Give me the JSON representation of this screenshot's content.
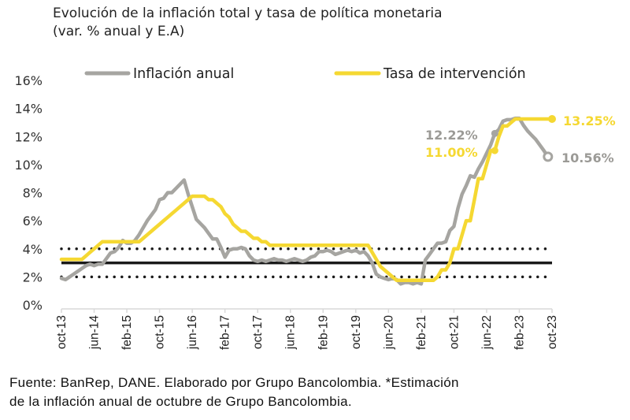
{
  "chart_data": {
    "type": "line",
    "title": "Evolución de la inflación total y tasa de política monetaria",
    "subtitle": "(var. % anual y E.A)",
    "xlabel": "",
    "ylabel": "",
    "ylim": [
      0,
      16
    ],
    "yticks": [
      0,
      2,
      4,
      6,
      8,
      10,
      12,
      14,
      16
    ],
    "ytick_labels": [
      "0%",
      "2%",
      "4%",
      "6%",
      "8%",
      "10%",
      "12%",
      "14%",
      "16%"
    ],
    "x_start": "oct-13",
    "x_end": "oct-23",
    "x_unit": "month",
    "xtick_labels": [
      "oct-13",
      "jun-14",
      "feb-15",
      "oct-15",
      "jun-16",
      "feb-17",
      "oct-17",
      "jun-18",
      "feb-19",
      "oct-19",
      "jun-20",
      "feb-21",
      "oct-21",
      "jun-22",
      "feb-23",
      "oct-23"
    ],
    "xtick_month_index": [
      0,
      8,
      16,
      24,
      32,
      40,
      48,
      56,
      64,
      72,
      80,
      88,
      96,
      104,
      112,
      120
    ],
    "grid": false,
    "legend_position": "top",
    "series": [
      {
        "name": "Inflación anual",
        "color": "#a6a5a1",
        "points": [
          [
            0,
            1.9
          ],
          [
            1,
            1.8
          ],
          [
            2,
            2.0
          ],
          [
            3,
            2.2
          ],
          [
            4,
            2.4
          ],
          [
            5,
            2.6
          ],
          [
            6,
            2.8
          ],
          [
            7,
            2.9
          ],
          [
            8,
            2.8
          ],
          [
            9,
            2.9
          ],
          [
            10,
            2.9
          ],
          [
            11,
            3.3
          ],
          [
            12,
            3.7
          ],
          [
            13,
            3.8
          ],
          [
            14,
            4.1
          ],
          [
            15,
            4.6
          ],
          [
            16,
            4.4
          ],
          [
            17,
            4.4
          ],
          [
            18,
            4.6
          ],
          [
            19,
            5.0
          ],
          [
            20,
            5.5
          ],
          [
            21,
            6.0
          ],
          [
            22,
            6.4
          ],
          [
            23,
            6.8
          ],
          [
            24,
            7.5
          ],
          [
            25,
            7.6
          ],
          [
            26,
            8.0
          ],
          [
            27,
            8.0
          ],
          [
            28,
            8.3
          ],
          [
            29,
            8.6
          ],
          [
            30,
            8.9
          ],
          [
            31,
            7.9
          ],
          [
            32,
            7.0
          ],
          [
            33,
            6.1
          ],
          [
            34,
            5.8
          ],
          [
            35,
            5.5
          ],
          [
            36,
            5.1
          ],
          [
            37,
            4.7
          ],
          [
            38,
            4.7
          ],
          [
            39,
            4.1
          ],
          [
            40,
            3.4
          ],
          [
            41,
            3.9
          ],
          [
            42,
            4.0
          ],
          [
            43,
            4.0
          ],
          [
            44,
            4.1
          ],
          [
            45,
            4.0
          ],
          [
            46,
            3.5
          ],
          [
            47,
            3.2
          ],
          [
            48,
            3.1
          ],
          [
            49,
            3.2
          ],
          [
            50,
            3.1
          ],
          [
            51,
            3.2
          ],
          [
            52,
            3.3
          ],
          [
            53,
            3.2
          ],
          [
            54,
            3.2
          ],
          [
            55,
            3.1
          ],
          [
            56,
            3.2
          ],
          [
            57,
            3.3
          ],
          [
            58,
            3.2
          ],
          [
            59,
            3.1
          ],
          [
            60,
            3.2
          ],
          [
            61,
            3.4
          ],
          [
            62,
            3.5
          ],
          [
            63,
            3.8
          ],
          [
            64,
            3.8
          ],
          [
            65,
            3.9
          ],
          [
            66,
            3.8
          ],
          [
            67,
            3.6
          ],
          [
            68,
            3.7
          ],
          [
            69,
            3.8
          ],
          [
            70,
            3.9
          ],
          [
            71,
            3.8
          ],
          [
            72,
            3.9
          ],
          [
            73,
            3.7
          ],
          [
            74,
            3.8
          ],
          [
            75,
            3.5
          ],
          [
            76,
            3.0
          ],
          [
            77,
            2.2
          ],
          [
            78,
            2.0
          ],
          [
            79,
            1.9
          ],
          [
            80,
            1.8
          ],
          [
            81,
            1.9
          ],
          [
            82,
            1.8
          ],
          [
            83,
            1.5
          ],
          [
            84,
            1.6
          ],
          [
            85,
            1.6
          ],
          [
            86,
            1.5
          ],
          [
            87,
            1.6
          ],
          [
            88,
            1.5
          ],
          [
            89,
            3.2
          ],
          [
            90,
            3.6
          ],
          [
            91,
            4.0
          ],
          [
            92,
            4.4
          ],
          [
            93,
            4.4
          ],
          [
            94,
            4.5
          ],
          [
            95,
            5.3
          ],
          [
            96,
            5.6
          ],
          [
            97,
            6.9
          ],
          [
            98,
            7.9
          ],
          [
            99,
            8.5
          ],
          [
            100,
            9.2
          ],
          [
            101,
            9.1
          ],
          [
            102,
            9.7
          ],
          [
            103,
            10.2
          ],
          [
            104,
            10.8
          ],
          [
            105,
            11.4
          ],
          [
            106,
            12.22
          ],
          [
            107,
            12.5
          ],
          [
            108,
            13.1
          ],
          [
            109,
            13.2
          ],
          [
            110,
            13.2
          ],
          [
            111,
            13.3
          ],
          [
            112,
            13.3
          ],
          [
            113,
            12.8
          ],
          [
            114,
            12.4
          ],
          [
            115,
            12.1
          ],
          [
            116,
            11.8
          ],
          [
            117,
            11.4
          ],
          [
            118,
            11.0
          ],
          [
            119,
            10.56
          ]
        ],
        "annotations": [
          {
            "month": 106,
            "value": 12.22,
            "label": "12.22%"
          },
          {
            "month": 119,
            "value": 10.56,
            "label": "10.56%",
            "note": "estimación (marcador hueco)"
          }
        ]
      },
      {
        "name": "Tasa de intervención",
        "color": "#f5d832",
        "points": [
          [
            0,
            3.25
          ],
          [
            1,
            3.25
          ],
          [
            2,
            3.25
          ],
          [
            3,
            3.25
          ],
          [
            4,
            3.25
          ],
          [
            5,
            3.25
          ],
          [
            6,
            3.5
          ],
          [
            7,
            3.75
          ],
          [
            8,
            4.0
          ],
          [
            9,
            4.25
          ],
          [
            10,
            4.5
          ],
          [
            11,
            4.5
          ],
          [
            12,
            4.5
          ],
          [
            13,
            4.5
          ],
          [
            14,
            4.5
          ],
          [
            15,
            4.5
          ],
          [
            16,
            4.5
          ],
          [
            17,
            4.5
          ],
          [
            18,
            4.5
          ],
          [
            19,
            4.5
          ],
          [
            20,
            4.75
          ],
          [
            21,
            5.0
          ],
          [
            22,
            5.25
          ],
          [
            23,
            5.5
          ],
          [
            24,
            5.75
          ],
          [
            25,
            6.0
          ],
          [
            26,
            6.25
          ],
          [
            27,
            6.5
          ],
          [
            28,
            6.75
          ],
          [
            29,
            7.0
          ],
          [
            30,
            7.25
          ],
          [
            31,
            7.5
          ],
          [
            32,
            7.75
          ],
          [
            33,
            7.75
          ],
          [
            34,
            7.75
          ],
          [
            35,
            7.75
          ],
          [
            36,
            7.5
          ],
          [
            37,
            7.5
          ],
          [
            38,
            7.25
          ],
          [
            39,
            7.0
          ],
          [
            40,
            6.5
          ],
          [
            41,
            6.25
          ],
          [
            42,
            5.75
          ],
          [
            43,
            5.5
          ],
          [
            44,
            5.25
          ],
          [
            45,
            5.25
          ],
          [
            46,
            5.0
          ],
          [
            47,
            4.75
          ],
          [
            48,
            4.75
          ],
          [
            49,
            4.5
          ],
          [
            50,
            4.5
          ],
          [
            51,
            4.25
          ],
          [
            52,
            4.25
          ],
          [
            53,
            4.25
          ],
          [
            54,
            4.25
          ],
          [
            55,
            4.25
          ],
          [
            56,
            4.25
          ],
          [
            57,
            4.25
          ],
          [
            58,
            4.25
          ],
          [
            59,
            4.25
          ],
          [
            60,
            4.25
          ],
          [
            61,
            4.25
          ],
          [
            62,
            4.25
          ],
          [
            63,
            4.25
          ],
          [
            64,
            4.25
          ],
          [
            65,
            4.25
          ],
          [
            66,
            4.25
          ],
          [
            67,
            4.25
          ],
          [
            68,
            4.25
          ],
          [
            69,
            4.25
          ],
          [
            70,
            4.25
          ],
          [
            71,
            4.25
          ],
          [
            72,
            4.25
          ],
          [
            73,
            4.25
          ],
          [
            74,
            4.25
          ],
          [
            75,
            4.25
          ],
          [
            76,
            3.75
          ],
          [
            77,
            3.25
          ],
          [
            78,
            2.75
          ],
          [
            79,
            2.5
          ],
          [
            80,
            2.25
          ],
          [
            81,
            2.0
          ],
          [
            82,
            1.75
          ],
          [
            83,
            1.75
          ],
          [
            84,
            1.75
          ],
          [
            85,
            1.75
          ],
          [
            86,
            1.75
          ],
          [
            87,
            1.75
          ],
          [
            88,
            1.75
          ],
          [
            89,
            1.75
          ],
          [
            90,
            1.75
          ],
          [
            91,
            1.75
          ],
          [
            92,
            2.0
          ],
          [
            93,
            2.5
          ],
          [
            94,
            2.5
          ],
          [
            95,
            3.0
          ],
          [
            96,
            4.0
          ],
          [
            97,
            4.0
          ],
          [
            98,
            5.0
          ],
          [
            99,
            6.0
          ],
          [
            100,
            6.0
          ],
          [
            101,
            7.5
          ],
          [
            102,
            9.0
          ],
          [
            103,
            9.0
          ],
          [
            104,
            10.0
          ],
          [
            105,
            11.0
          ],
          [
            106,
            11.0
          ],
          [
            107,
            12.0
          ],
          [
            108,
            12.75
          ],
          [
            109,
            12.75
          ],
          [
            110,
            13.0
          ],
          [
            111,
            13.25
          ],
          [
            112,
            13.25
          ],
          [
            113,
            13.25
          ],
          [
            114,
            13.25
          ],
          [
            115,
            13.25
          ],
          [
            116,
            13.25
          ],
          [
            117,
            13.25
          ],
          [
            118,
            13.25
          ],
          [
            119,
            13.25
          ],
          [
            120,
            13.25
          ]
        ],
        "annotations": [
          {
            "month": 106,
            "value": 11.0,
            "label": "11.00%"
          },
          {
            "month": 120,
            "value": 13.25,
            "label": "13.25%"
          }
        ]
      }
    ],
    "reference_lines": [
      {
        "name": "Meta de inflación",
        "value": 3,
        "style": "solid",
        "color": "#1a1a1a"
      },
      {
        "name": "Rango superior",
        "value": 4,
        "style": "dotted",
        "color": "#1a1a1a"
      },
      {
        "name": "Rango inferior",
        "value": 2,
        "style": "dotted",
        "color": "#1a1a1a"
      }
    ]
  },
  "header": {
    "title_line1": "Evolución de la inflación total y tasa de política monetaria",
    "title_line2": "(var. % anual y E.A)"
  },
  "legend": {
    "items": [
      {
        "label": "Inflación anual",
        "color": "#a6a5a1"
      },
      {
        "label": "Tasa de intervención",
        "color": "#f5d832"
      }
    ]
  },
  "annotations": {
    "infl_mid": "12.22%",
    "tasa_mid": "11.00%",
    "tasa_end": "13.25%",
    "infl_end": "10.56%",
    "infl_color": "#9b9a96",
    "tasa_color": "#f5d832"
  },
  "footer": {
    "line1": "Fuente: BanRep, DANE. Elaborado por Grupo Bancolombia. *Estimación",
    "line2": "de la inflación anual de octubre de Grupo Bancolombia."
  }
}
